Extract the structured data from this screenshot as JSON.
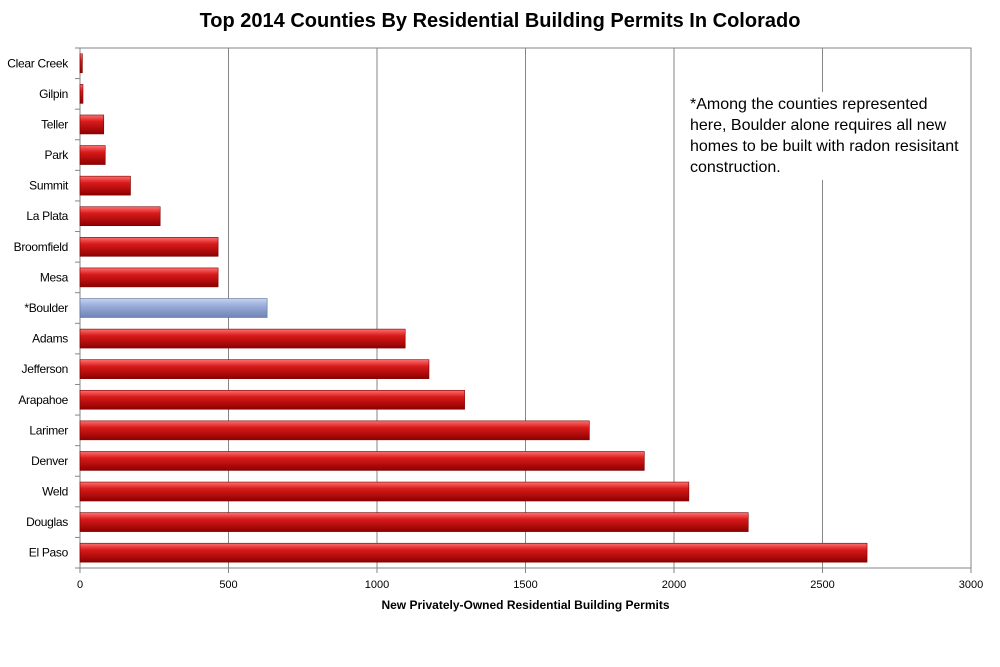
{
  "chart_data": {
    "type": "bar",
    "orientation": "horizontal",
    "title": "Top 2014 Counties By Residential Building Permits In Colorado",
    "xlabel": "New Privately-Owned Residential Building Permits",
    "ylabel": "",
    "xlim": [
      0,
      3000
    ],
    "xticks": [
      0,
      500,
      1000,
      1500,
      2000,
      2500,
      3000
    ],
    "grid": "vertical",
    "legend": "none",
    "categories": [
      "Clear Creek",
      "Gilpin",
      "Teller",
      "Park",
      "Summit",
      "La Plata",
      "Broomfield",
      "Mesa",
      "*Boulder",
      "Adams",
      "Jefferson",
      "Arapahoe",
      "Larimer",
      "Denver",
      "Weld",
      "Douglas",
      "El Paso"
    ],
    "values": [
      8,
      10,
      80,
      85,
      170,
      270,
      465,
      465,
      630,
      1095,
      1175,
      1295,
      1715,
      1900,
      2050,
      2250,
      2650
    ],
    "highlight": "*Boulder",
    "bar_color": "#c00000",
    "highlight_color": "#95a9d6",
    "annotation": "*Among the counties represented here, Boulder alone requires all new homes to be built with radon resisitant construction."
  }
}
